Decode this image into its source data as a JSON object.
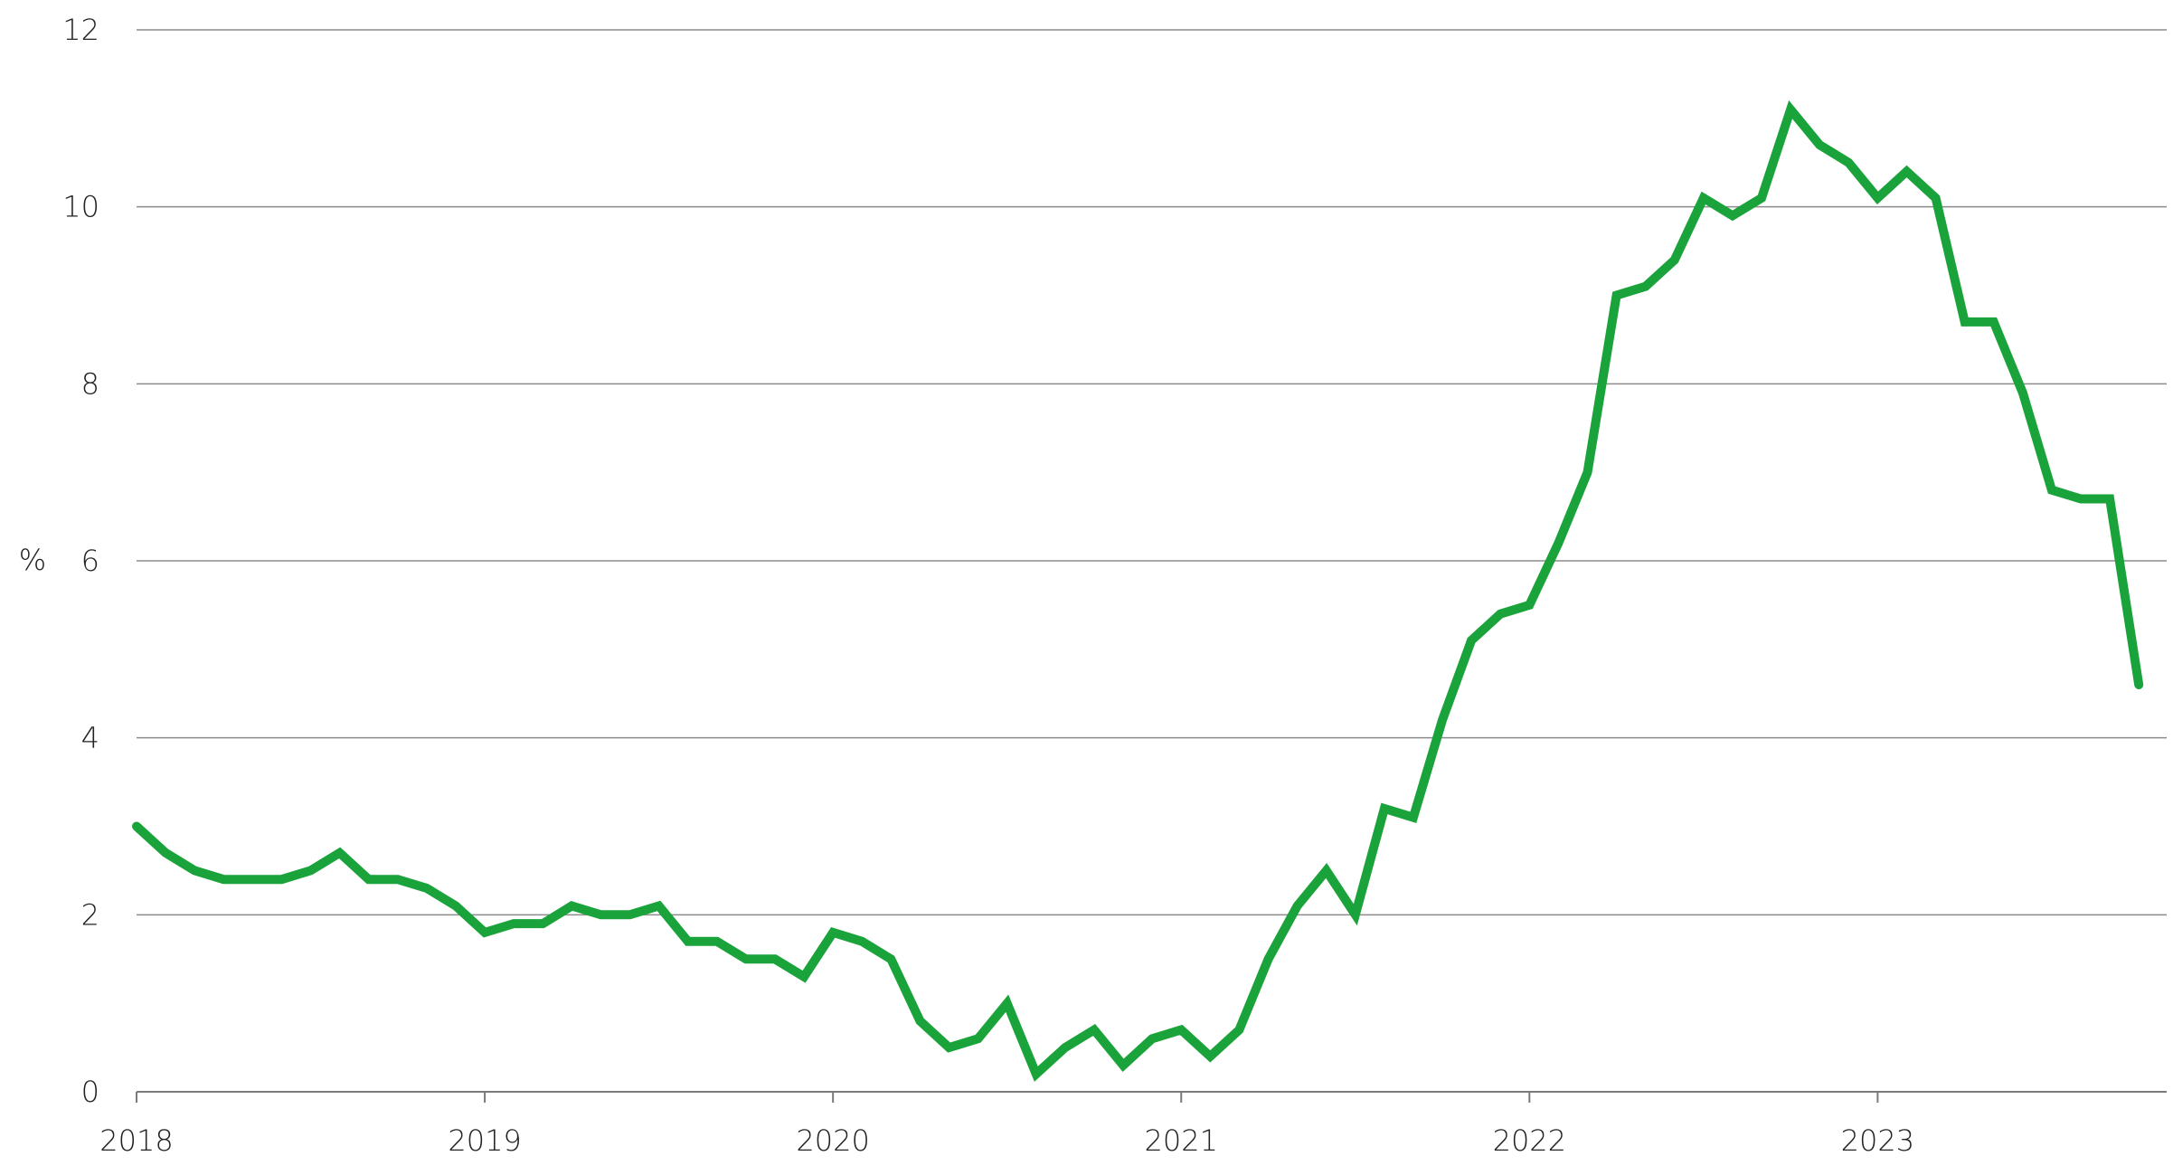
{
  "chart_data": {
    "type": "line",
    "ylabel": "%",
    "ylim": [
      0,
      12
    ],
    "yticks": [
      "0",
      "2",
      "4",
      "6",
      "8",
      "10",
      "12"
    ],
    "xlim": [
      2018.0,
      2023.83
    ],
    "xticks": [
      "2018",
      "2019",
      "2020",
      "2021",
      "2022",
      "2023"
    ],
    "grid": "horizontal",
    "series": [
      {
        "color": "#1aa33a",
        "x": [
          "2018-01",
          "2018-02",
          "2018-03",
          "2018-04",
          "2018-05",
          "2018-06",
          "2018-07",
          "2018-08",
          "2018-09",
          "2018-10",
          "2018-11",
          "2018-12",
          "2019-01",
          "2019-02",
          "2019-03",
          "2019-04",
          "2019-05",
          "2019-06",
          "2019-07",
          "2019-08",
          "2019-09",
          "2019-10",
          "2019-11",
          "2019-12",
          "2020-01",
          "2020-02",
          "2020-03",
          "2020-04",
          "2020-05",
          "2020-06",
          "2020-07",
          "2020-08",
          "2020-09",
          "2020-10",
          "2020-11",
          "2020-12",
          "2021-01",
          "2021-02",
          "2021-03",
          "2021-04",
          "2021-05",
          "2021-06",
          "2021-07",
          "2021-08",
          "2021-09",
          "2021-10",
          "2021-11",
          "2021-12",
          "2022-01",
          "2022-02",
          "2022-03",
          "2022-04",
          "2022-05",
          "2022-06",
          "2022-07",
          "2022-08",
          "2022-09",
          "2022-10",
          "2022-11",
          "2022-12",
          "2023-01",
          "2023-02",
          "2023-03",
          "2023-04",
          "2023-05",
          "2023-06",
          "2023-07",
          "2023-08",
          "2023-09",
          "2023-10"
        ],
        "values": [
          3.0,
          2.7,
          2.5,
          2.4,
          2.4,
          2.4,
          2.5,
          2.7,
          2.4,
          2.4,
          2.3,
          2.1,
          1.8,
          1.9,
          1.9,
          2.1,
          2.0,
          2.0,
          2.1,
          1.7,
          1.7,
          1.5,
          1.5,
          1.3,
          1.8,
          1.7,
          1.5,
          0.8,
          0.5,
          0.6,
          1.0,
          0.2,
          0.5,
          0.7,
          0.3,
          0.6,
          0.7,
          0.4,
          0.7,
          1.5,
          2.1,
          2.5,
          2.0,
          3.2,
          3.1,
          4.2,
          5.1,
          5.4,
          5.5,
          6.2,
          7.0,
          9.0,
          9.1,
          9.4,
          10.1,
          9.9,
          10.1,
          11.1,
          10.7,
          10.5,
          10.1,
          10.4,
          10.1,
          8.7,
          8.7,
          7.9,
          6.8,
          6.7,
          6.7,
          4.6
        ]
      }
    ]
  }
}
